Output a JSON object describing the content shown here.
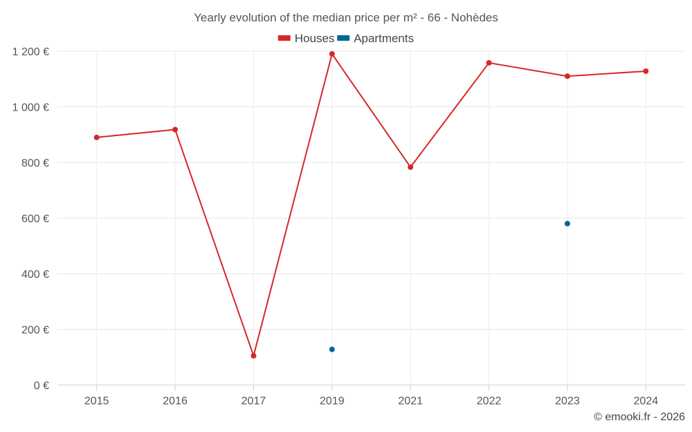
{
  "chart_data": {
    "type": "line",
    "title": "Yearly evolution of the median price per m² - 66 - Nohèdes",
    "categories": [
      "2015",
      "2016",
      "2017",
      "2019",
      "2021",
      "2022",
      "2023",
      "2024"
    ],
    "ylim": [
      0,
      1200
    ],
    "yticks": [
      0,
      200,
      400,
      600,
      800,
      1000,
      1200
    ],
    "ytick_labels": [
      "0 €",
      "200 €",
      "400 €",
      "600 €",
      "800 €",
      "1 000 €",
      "1 200 €"
    ],
    "grid": true,
    "legend_position": "top-center",
    "series": [
      {
        "name": "Houses",
        "color": "#d62728",
        "values": [
          890,
          918,
          105,
          1190,
          783,
          1158,
          1110,
          1128
        ]
      },
      {
        "name": "Apartments",
        "color": "#006699",
        "values": [
          null,
          null,
          null,
          128,
          null,
          null,
          580,
          null
        ]
      }
    ]
  },
  "credit": "© emooki.fr - 2026"
}
